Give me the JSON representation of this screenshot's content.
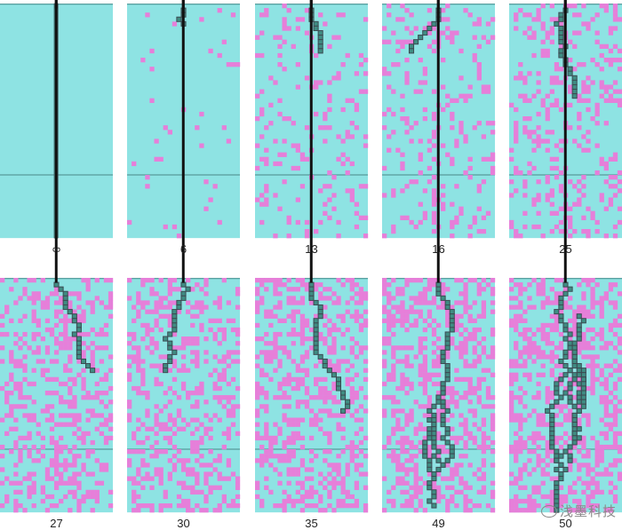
{
  "panels": [
    {
      "label": "∞",
      "density": 0.0,
      "path_profile": "straight"
    },
    {
      "label": "6",
      "density": 0.03,
      "path_profile": "tiny"
    },
    {
      "label": "13",
      "density": 0.13,
      "path_profile": "short"
    },
    {
      "label": "16",
      "density": 0.16,
      "path_profile": "short"
    },
    {
      "label": "25",
      "density": 0.25,
      "path_profile": "medium"
    },
    {
      "label": "27",
      "density": 0.33,
      "path_profile": "medium"
    },
    {
      "label": "30",
      "density": 0.35,
      "path_profile": "medium"
    },
    {
      "label": "35",
      "density": 0.37,
      "path_profile": "long"
    },
    {
      "label": "49",
      "density": 0.4,
      "path_profile": "branching"
    },
    {
      "label": "50",
      "density": 0.42,
      "path_profile": "branching-wide"
    }
  ],
  "colors": {
    "background": "#8ee3e3",
    "occupied_cell": "#e67fd9",
    "path": "#3f8c82",
    "path_dark": "#3d4a52",
    "line": "#4a8a8a",
    "stem": "#111111"
  },
  "watermark": {
    "text": "浅墨科技",
    "icon": "weibo-eye-icon"
  }
}
